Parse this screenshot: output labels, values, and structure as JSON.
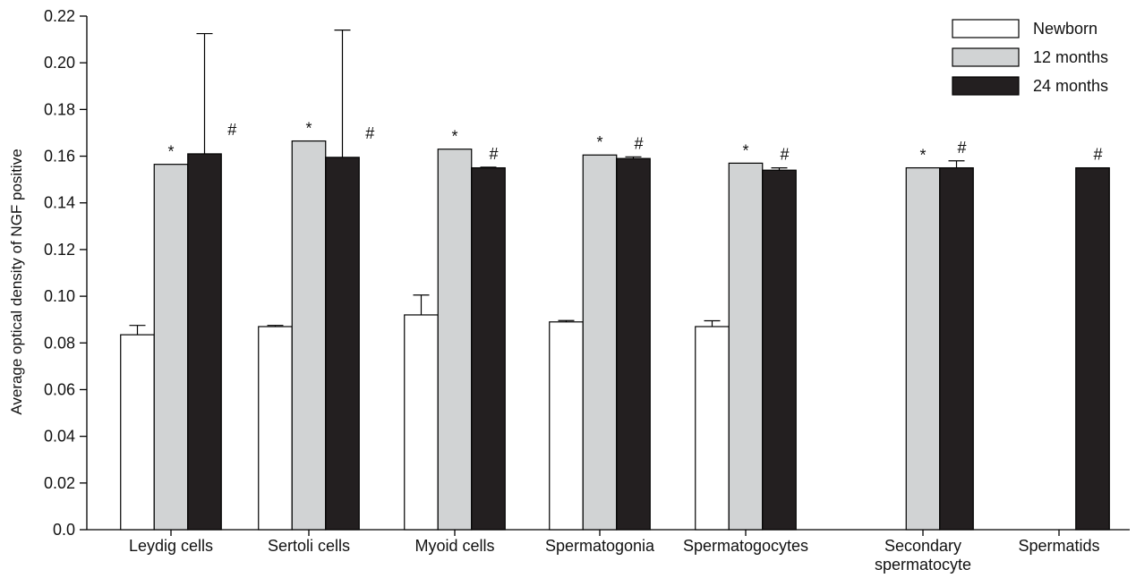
{
  "chart_data": {
    "type": "bar",
    "ylabel": "Average optical density of NGF positive",
    "xlabel": "",
    "ylim": [
      0,
      0.22
    ],
    "y_ticks": [
      "0.0",
      "0.02",
      "0.04",
      "0.06",
      "0.08",
      "0.10",
      "0.12",
      "0.14",
      "0.16",
      "0.18",
      "0.20",
      "0.22"
    ],
    "categories": [
      [
        "Leydig cells"
      ],
      [
        "Sertoli cells"
      ],
      [
        "Myoid cells"
      ],
      [
        "Spermatogonia"
      ],
      [
        "Spermatogocytes"
      ],
      [
        "Secondary",
        "spermatocyte"
      ],
      [
        "Spermatids"
      ]
    ],
    "series": [
      {
        "name": "Newborn",
        "color": "#ffffff",
        "values": [
          0.0835,
          0.087,
          0.092,
          0.089,
          0.087,
          null,
          null
        ],
        "errors": [
          0.004,
          0.0005,
          0.0085,
          0.0006,
          0.0025,
          null,
          null
        ],
        "marks": [
          "",
          "",
          "",
          "",
          "",
          "",
          ""
        ]
      },
      {
        "name": "12 months",
        "color": "#d1d3d4",
        "values": [
          0.1565,
          0.1665,
          0.163,
          0.1605,
          0.157,
          0.155,
          null
        ],
        "errors": [
          0,
          0,
          0,
          0,
          0,
          0,
          null
        ],
        "marks": [
          "*",
          "*",
          "*",
          "*",
          "*",
          "*",
          ""
        ]
      },
      {
        "name": "24 months",
        "color": "#231f20",
        "values": [
          0.161,
          0.1595,
          0.155,
          0.159,
          0.154,
          0.155,
          0.155
        ],
        "errors": [
          0.0515,
          0.0545,
          0.0003,
          0.0007,
          0.001,
          0.003,
          0
        ],
        "marks": [
          "#",
          "#",
          "#",
          "#",
          "#",
          "#",
          "#"
        ]
      }
    ],
    "legend_position": "top-right",
    "grid": false
  }
}
